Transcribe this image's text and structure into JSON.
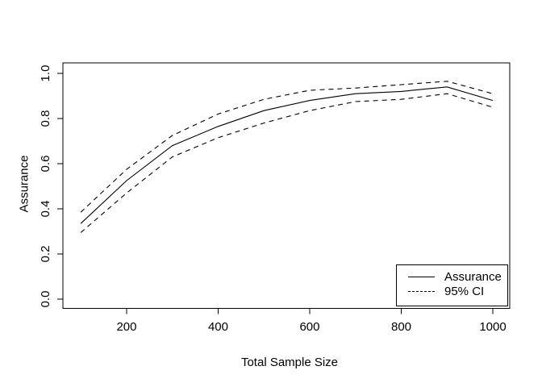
{
  "chart_data": {
    "type": "line",
    "title": "",
    "xlabel": "Total Sample Size",
    "ylabel": "Assurance",
    "x": [
      100,
      200,
      300,
      400,
      500,
      600,
      700,
      800,
      900,
      1000
    ],
    "series": [
      {
        "name": "Assurance",
        "style": "solid",
        "values": [
          0.335,
          0.525,
          0.68,
          0.765,
          0.835,
          0.88,
          0.91,
          0.92,
          0.94,
          0.88
        ]
      },
      {
        "name": "95% CI upper",
        "style": "dashed",
        "values": [
          0.385,
          0.575,
          0.725,
          0.82,
          0.885,
          0.925,
          0.935,
          0.95,
          0.965,
          0.91
        ]
      },
      {
        "name": "95% CI lower",
        "style": "dashed",
        "values": [
          0.295,
          0.47,
          0.63,
          0.715,
          0.78,
          0.835,
          0.875,
          0.885,
          0.91,
          0.85
        ]
      }
    ],
    "x_ticks": [
      "200",
      "400",
      "600",
      "800",
      "1000"
    ],
    "x_tick_values": [
      200,
      400,
      600,
      800,
      1000
    ],
    "y_ticks": [
      "0.0",
      "0.2",
      "0.4",
      "0.6",
      "0.8",
      "1.0"
    ],
    "y_tick_values": [
      0.0,
      0.2,
      0.4,
      0.6,
      0.8,
      1.0
    ],
    "xlim": [
      100,
      1000
    ],
    "ylim": [
      0.0,
      1.0
    ],
    "grid": false,
    "legend": {
      "position": "bottomright",
      "entries": [
        {
          "label": "Assurance",
          "line": "solid"
        },
        {
          "label": "95% CI",
          "line": "dashed"
        }
      ]
    },
    "line_color": "#000000",
    "background": "#ffffff"
  }
}
